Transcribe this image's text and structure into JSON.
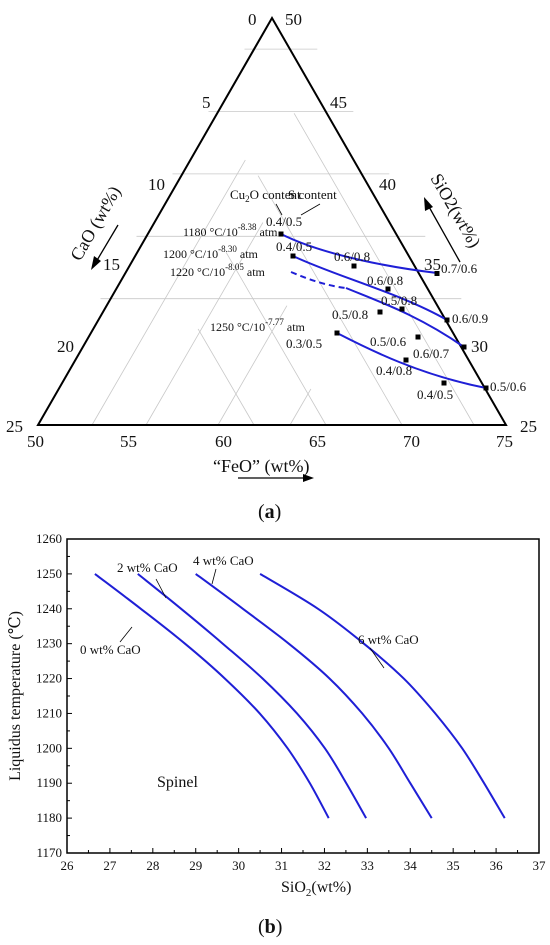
{
  "colors": {
    "curve": "#1f1fd6",
    "grid": "#c8c8c8",
    "axis": "#000000",
    "marker": "#000000"
  },
  "panel_a": {
    "caption_open": "(",
    "caption_letter": "a",
    "caption_close": ")",
    "axis_cao_label": "CaO (wt%)",
    "axis_sio2_label": "SiO2(wt%)",
    "axis_feo_label": "“FeO” (wt%)",
    "apex_top_left": "0",
    "apex_top_right": "50",
    "left_ticks": [
      "5",
      "10",
      "15",
      "20"
    ],
    "right_ticks": [
      "45",
      "40",
      "35",
      "30"
    ],
    "bottom_ticks": [
      "50",
      "55",
      "60",
      "65",
      "70",
      "75"
    ],
    "corner_left": "25",
    "corner_right": "25",
    "header_cu2o": "Cu2O content",
    "header_s": "S content",
    "curve_labels": [
      "1180 °C/10-8.38 atm",
      "1200 °C/10-8.30 atm",
      "1220 °C/10-8.05 atm",
      "1250 °C/10-7.77 atm"
    ],
    "point_labels": [
      "0.4/0.5",
      "0.6/0.8",
      "0.7/0.6",
      "0.6/0.9",
      "0.4/0.5",
      "0.6/0.8",
      "0.5/0.8",
      "0.5/0.8",
      "0.5/0.6",
      "0.6/0.7",
      "0.3/0.5",
      "0.4/0.8",
      "0.4/0.5",
      "0.5/0.6"
    ]
  },
  "panel_b": {
    "caption_open": "(",
    "caption_letter": "b",
    "caption_close": ")",
    "region_label": "Spinel"
  },
  "chart_data": {
    "type": "line",
    "xlabel": "SiO2(wt%)",
    "ylabel": "Liquidus temperature (℃)",
    "xlim": [
      26,
      37
    ],
    "ylim": [
      1170,
      1260
    ],
    "x_ticks": [
      26,
      27,
      28,
      29,
      30,
      31,
      32,
      33,
      34,
      35,
      36,
      37
    ],
    "y_ticks": [
      1170,
      1180,
      1190,
      1200,
      1210,
      1220,
      1230,
      1240,
      1250,
      1260
    ],
    "series": [
      {
        "name": "0 wt% CaO",
        "points": [
          [
            26.65,
            1250
          ],
          [
            27.72,
            1240
          ],
          [
            28.75,
            1230
          ],
          [
            29.68,
            1220
          ],
          [
            30.49,
            1210
          ],
          [
            31.14,
            1200
          ],
          [
            31.66,
            1190
          ],
          [
            32.1,
            1180
          ]
        ]
      },
      {
        "name": "2 wt% CaO",
        "points": [
          [
            27.65,
            1250
          ],
          [
            28.66,
            1240
          ],
          [
            29.63,
            1230
          ],
          [
            30.56,
            1220
          ],
          [
            31.36,
            1210
          ],
          [
            32.01,
            1200
          ],
          [
            32.51,
            1190
          ],
          [
            32.97,
            1180
          ]
        ]
      },
      {
        "name": "4 wt% CaO",
        "points": [
          [
            29.0,
            1250
          ],
          [
            30.1,
            1240
          ],
          [
            31.17,
            1230
          ],
          [
            32.12,
            1220
          ],
          [
            32.88,
            1210
          ],
          [
            33.5,
            1200
          ],
          [
            34.0,
            1190
          ],
          [
            34.5,
            1180
          ]
        ]
      },
      {
        "name": "6 wt% CaO",
        "points": [
          [
            30.5,
            1250
          ],
          [
            31.85,
            1240
          ],
          [
            32.92,
            1230
          ],
          [
            33.85,
            1220
          ],
          [
            34.58,
            1210
          ],
          [
            35.21,
            1200
          ],
          [
            35.72,
            1190
          ],
          [
            36.2,
            1180
          ]
        ]
      }
    ]
  }
}
